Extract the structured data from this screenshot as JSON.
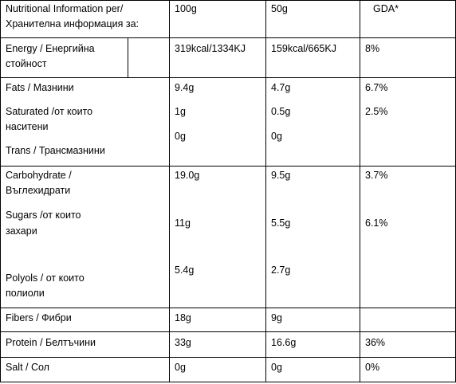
{
  "header": {
    "label_line1": "Nutritional Information per/",
    "label_line2": "Хранителна информация за:",
    "col_100g": "100g",
    "col_50g": "50g",
    "col_gda": "GDA*"
  },
  "energy": {
    "label_line1": "Energy / Енергийна",
    "label_line2": "стойност",
    "v100": "319kcal/1334KJ",
    "v50": "159kcal/665KJ",
    "gda": "8%"
  },
  "fats": {
    "label": "Fats / Мазнини",
    "v100": "9.4g",
    "v50": "4.7g",
    "gda": "6.7%",
    "saturated_line1": "Saturated /от които",
    "saturated_line2": "наситени",
    "saturated_v100": "1g",
    "saturated_v50": "0.5g",
    "saturated_gda": "2.5%",
    "trans_label": "Trans / Трансмазнини",
    "trans_v100": "0g",
    "trans_v50": "0g"
  },
  "carbs": {
    "label_line1": "Carbohydrate /",
    "label_line2": "Въглехидрати",
    "v100": "19.0g",
    "v50": "9.5g",
    "gda": "3.7%",
    "sugars_line1": "Sugars /от  които",
    "sugars_line2": "захари",
    "sugars_v100": "11g",
    "sugars_v50": "5.5g",
    "sugars_gda": "6.1%",
    "polyols_line1": "Polyols / от които",
    "polyols_line2": "полиоли",
    "polyols_v100": "5.4g",
    "polyols_v50": "2.7g"
  },
  "fibers": {
    "label": "Fibers / Фибри",
    "v100": "18g",
    "v50": "9g"
  },
  "protein": {
    "label": "Protein / Белтъчини",
    "v100": "33g",
    "v50": "16.6g",
    "gda": "36%"
  },
  "salt": {
    "label": "Salt / Сол",
    "v100": "0g",
    "v50": "0g",
    "gda": "0%"
  }
}
